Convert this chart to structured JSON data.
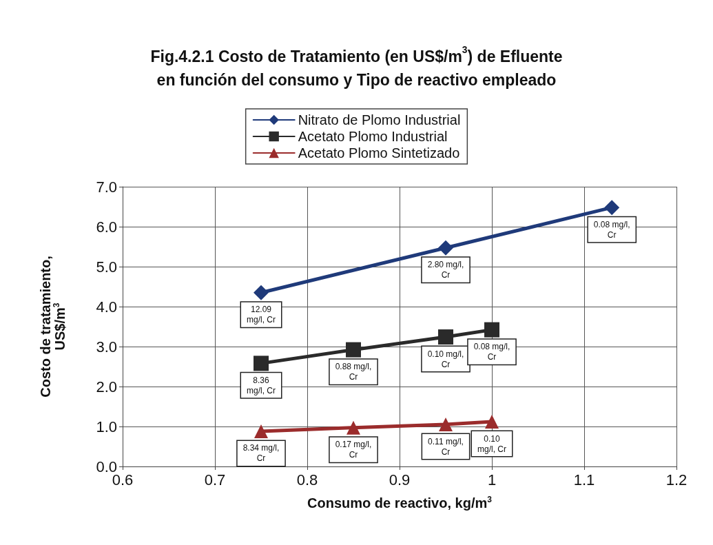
{
  "chart_data": {
    "type": "line",
    "title": "Fig.4.2.1 Costo de Tratamiento (en US$/m$^{3}$) de Efluente\nen función del consumo y Tipo de reactivo empleado",
    "xlabel": "Consumo de reactivo, kg/m$^{3}$",
    "ylabel": "Costo de tratamiento,\nUS$/m$^{3}$",
    "xlim": [
      0.6,
      1.2
    ],
    "xticks": [
      0.6,
      0.7,
      0.8,
      0.9,
      1,
      1.1,
      1.2
    ],
    "ylim": [
      0,
      7
    ],
    "yticks": [
      {
        "value": 0,
        "label": "0.0"
      },
      {
        "value": 1,
        "label": "1.0"
      },
      {
        "value": 2,
        "label": "2.0"
      },
      {
        "value": 3,
        "label": "3.0"
      },
      {
        "value": 4,
        "label": "4.0"
      },
      {
        "value": 5,
        "label": "5.0"
      },
      {
        "value": 6,
        "label": "6.0"
      },
      {
        "value": 7,
        "label": "7.0"
      }
    ],
    "grid": true,
    "legend": "top",
    "series": [
      {
        "name": "Nitrato de Plomo Industrial",
        "color": "#1f3a7a",
        "marker": "diamond",
        "x": [
          0.75,
          0.95,
          1.13
        ],
        "values": [
          4.35,
          5.47,
          6.48
        ]
      },
      {
        "name": "Acetato Plomo Industrial",
        "color": "#2a2a2a",
        "marker": "square",
        "x": [
          0.75,
          0.85,
          0.95,
          1.0
        ],
        "values": [
          2.58,
          2.92,
          3.24,
          3.42
        ]
      },
      {
        "name": "Acetato Plomo Sintetizado",
        "color": "#9b2c2c",
        "marker": "triangle",
        "x": [
          0.75,
          0.85,
          0.95,
          1.0
        ],
        "values": [
          0.88,
          0.97,
          1.05,
          1.12
        ]
      }
    ],
    "annotations": [
      {
        "text": "12.09\nmg/l, Cr",
        "x": 0.75,
        "y": 4.35
      },
      {
        "text": "2.80 mg/l,\nCr",
        "x": 0.95,
        "y": 5.47
      },
      {
        "text": "0.08 mg/l,\nCr",
        "x": 1.13,
        "y": 6.48
      },
      {
        "text": "8.36\nmg/l, Cr",
        "x": 0.75,
        "y": 2.58
      },
      {
        "text": "0.88 mg/l,\nCr",
        "x": 0.85,
        "y": 2.92
      },
      {
        "text": "0.10 mg/l,\nCr",
        "x": 0.95,
        "y": 3.24
      },
      {
        "text": "0.08 mg/l,\nCr",
        "x": 1.0,
        "y": 3.42
      },
      {
        "text": "8.34 mg/l,\nCr",
        "x": 0.75,
        "y": 0.88
      },
      {
        "text": "0.17 mg/l,\nCr",
        "x": 0.85,
        "y": 0.97
      },
      {
        "text": "0.11 mg/l,\nCr",
        "x": 0.95,
        "y": 1.05
      },
      {
        "text": "0.10\nmg/l, Cr",
        "x": 1.0,
        "y": 1.12
      }
    ]
  }
}
